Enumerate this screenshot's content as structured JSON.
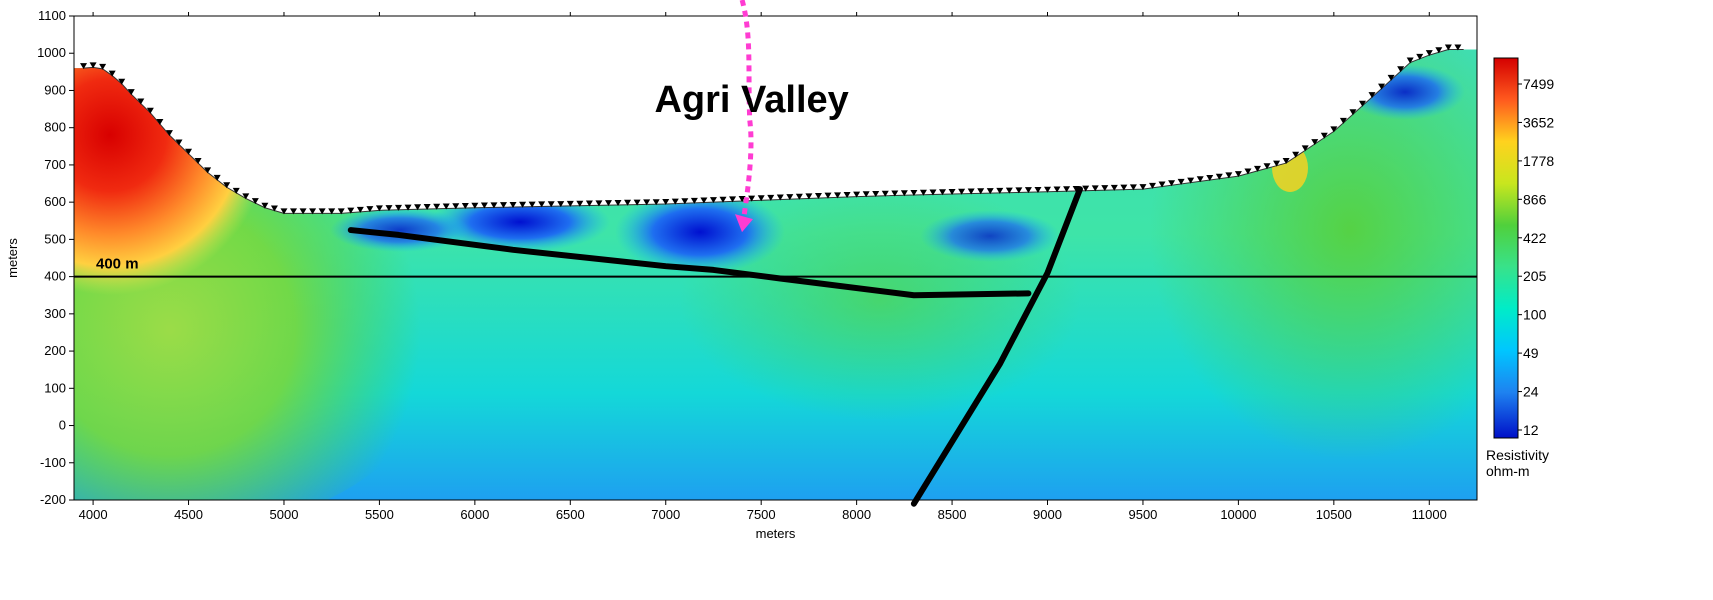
{
  "chart_data": {
    "type": "heatmap",
    "title": "",
    "xlabel": "meters",
    "ylabel": "meters",
    "xlim": [
      3900,
      11250
    ],
    "ylim": [
      -200,
      1100
    ],
    "x_ticks": [
      4000,
      4500,
      5000,
      5500,
      6000,
      6500,
      7000,
      7500,
      8000,
      8500,
      9000,
      9500,
      10000,
      10500,
      11000
    ],
    "y_ticks": [
      1100,
      1000,
      900,
      800,
      700,
      600,
      500,
      400,
      300,
      200,
      100,
      0,
      -100,
      -200
    ],
    "colorbar": {
      "title": "Resistivity",
      "unit": "ohm-m",
      "ticks": [
        7499,
        3652,
        1778,
        866,
        422,
        205,
        100,
        49,
        24,
        12
      ]
    },
    "annotations": {
      "valley_label": "Agri Valley",
      "reference_label": "400 m"
    },
    "reference_line_y": 400,
    "topography": [
      [
        3950,
        960
      ],
      [
        4000,
        962
      ],
      [
        4050,
        958
      ],
      [
        4100,
        940
      ],
      [
        4150,
        918
      ],
      [
        4200,
        890
      ],
      [
        4300,
        840
      ],
      [
        4400,
        780
      ],
      [
        4500,
        730
      ],
      [
        4600,
        680
      ],
      [
        4700,
        640
      ],
      [
        4800,
        610
      ],
      [
        4900,
        585
      ],
      [
        5000,
        570
      ],
      [
        5300,
        570
      ],
      [
        5500,
        578
      ],
      [
        6000,
        585
      ],
      [
        6500,
        590
      ],
      [
        7000,
        595
      ],
      [
        7500,
        605
      ],
      [
        8000,
        615
      ],
      [
        8500,
        622
      ],
      [
        9000,
        628
      ],
      [
        9500,
        635
      ],
      [
        10000,
        670
      ],
      [
        10250,
        705
      ],
      [
        10500,
        790
      ],
      [
        10750,
        905
      ],
      [
        10900,
        975
      ],
      [
        11000,
        995
      ],
      [
        11100,
        1010
      ],
      [
        11180,
        1010
      ]
    ],
    "interpreted_lines": [
      {
        "points": [
          [
            5350,
            525
          ],
          [
            5600,
            512
          ],
          [
            6200,
            472
          ],
          [
            7000,
            428
          ],
          [
            7250,
            418
          ],
          [
            7600,
            395
          ],
          [
            8300,
            350
          ],
          [
            8900,
            355
          ]
        ]
      },
      {
        "points": [
          [
            8300,
            -210
          ],
          [
            8750,
            165
          ],
          [
            9000,
            410
          ],
          [
            9170,
            635
          ]
        ]
      }
    ],
    "palette": [
      {
        "value": 7499,
        "color": "#d40000"
      },
      {
        "value": 3652,
        "color": "#ff5a1e"
      },
      {
        "value": 1778,
        "color": "#ffd21e"
      },
      {
        "value": 866,
        "color": "#c8e61e"
      },
      {
        "value": 422,
        "color": "#50d03c"
      },
      {
        "value": 205,
        "color": "#38e28a"
      },
      {
        "value": 100,
        "color": "#00ecc8"
      },
      {
        "value": 49,
        "color": "#00c6ff"
      },
      {
        "value": 24,
        "color": "#1e82f0"
      },
      {
        "value": 12,
        "color": "#0010c8"
      }
    ]
  }
}
